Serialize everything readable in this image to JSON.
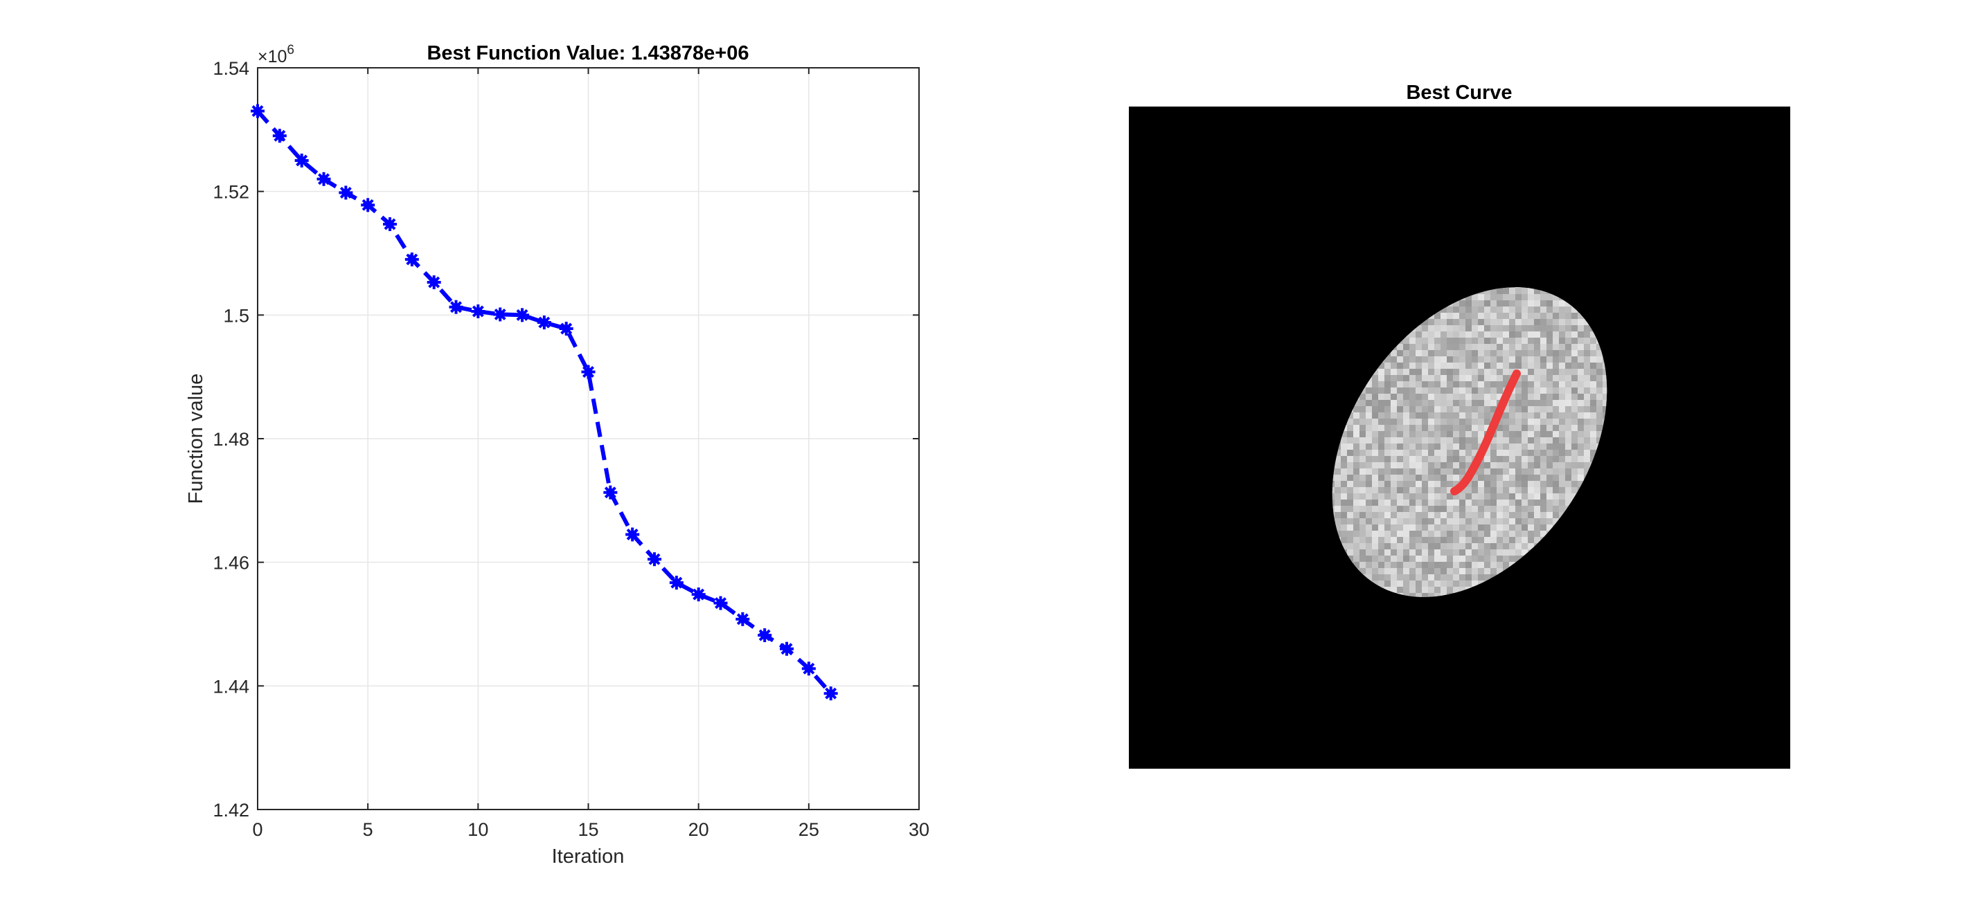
{
  "figure": {
    "background": "#ffffff"
  },
  "chart_data": [
    {
      "type": "line",
      "title": "Best Function Value: 1.43878e+06",
      "xlabel": "Iteration",
      "ylabel": "Function value",
      "exponent_label": "×10",
      "exponent_power": "6",
      "xlim": [
        0,
        30
      ],
      "ylim": [
        1.42,
        1.54
      ],
      "y_scale_factor": 1000000,
      "xticks": [
        0,
        5,
        10,
        15,
        20,
        25,
        30
      ],
      "xtick_labels": [
        "0",
        "5",
        "10",
        "15",
        "20",
        "25",
        "30"
      ],
      "yticks": [
        1.42,
        1.44,
        1.46,
        1.48,
        1.5,
        1.52,
        1.54
      ],
      "ytick_labels": [
        "1.42",
        "1.44",
        "1.46",
        "1.48",
        "1.5",
        "1.52",
        "1.54"
      ],
      "grid": true,
      "series": [
        {
          "color": "#0000ff",
          "line_style": "dashed",
          "marker": "asterisk",
          "x": [
            0,
            1,
            2,
            3,
            4,
            5,
            6,
            7,
            8,
            9,
            10,
            11,
            12,
            13,
            14,
            15,
            16,
            17,
            18,
            19,
            20,
            21,
            22,
            23,
            24,
            25,
            26
          ],
          "y": [
            1.533,
            1.529,
            1.525,
            1.522,
            1.5198,
            1.5178,
            1.5147,
            1.509,
            1.5053,
            1.5013,
            1.5006,
            1.5001,
            1.5,
            1.4988,
            1.4978,
            1.4908,
            1.4713,
            1.4645,
            1.4605,
            1.4567,
            1.4548,
            1.4534,
            1.4508,
            1.4482,
            1.446,
            1.4428,
            1.43878
          ]
        }
      ]
    },
    {
      "type": "image",
      "title": "Best Curve",
      "background_color": "#000000",
      "blob_color": "#bdbdbd",
      "curve_color": "#ee3b3b"
    }
  ]
}
